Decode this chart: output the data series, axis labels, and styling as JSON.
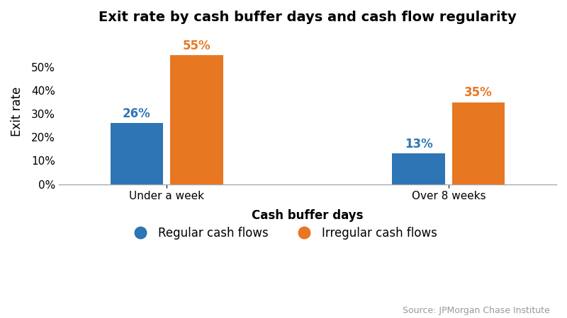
{
  "title": "Exit rate by cash buffer days and cash flow regularity",
  "xlabel": "Cash buffer days",
  "ylabel": "Exit rate",
  "categories": [
    "Under a week",
    "Over 8 weeks"
  ],
  "regular_values": [
    0.26,
    0.13
  ],
  "irregular_values": [
    0.55,
    0.35
  ],
  "regular_color": "#2e75b6",
  "irregular_color": "#e87722",
  "regular_label": "Regular cash flows",
  "irregular_label": "Irregular cash flows",
  "regular_labels": [
    "26%",
    "13%"
  ],
  "irregular_labels": [
    "55%",
    "35%"
  ],
  "ylim": [
    0,
    0.62
  ],
  "yticks": [
    0.0,
    0.1,
    0.2,
    0.3,
    0.4,
    0.5
  ],
  "ytick_labels": [
    "0%",
    "10%",
    "20%",
    "30%",
    "40%",
    "50%"
  ],
  "bar_width": 0.32,
  "source_text": "Source: JPMorgan Chase Institute",
  "background_color": "#ffffff",
  "title_fontsize": 14,
  "axis_label_fontsize": 12,
  "tick_fontsize": 11,
  "legend_fontsize": 12,
  "bar_label_fontsize": 12,
  "source_fontsize": 9,
  "group_positions": [
    1.0,
    2.7
  ]
}
